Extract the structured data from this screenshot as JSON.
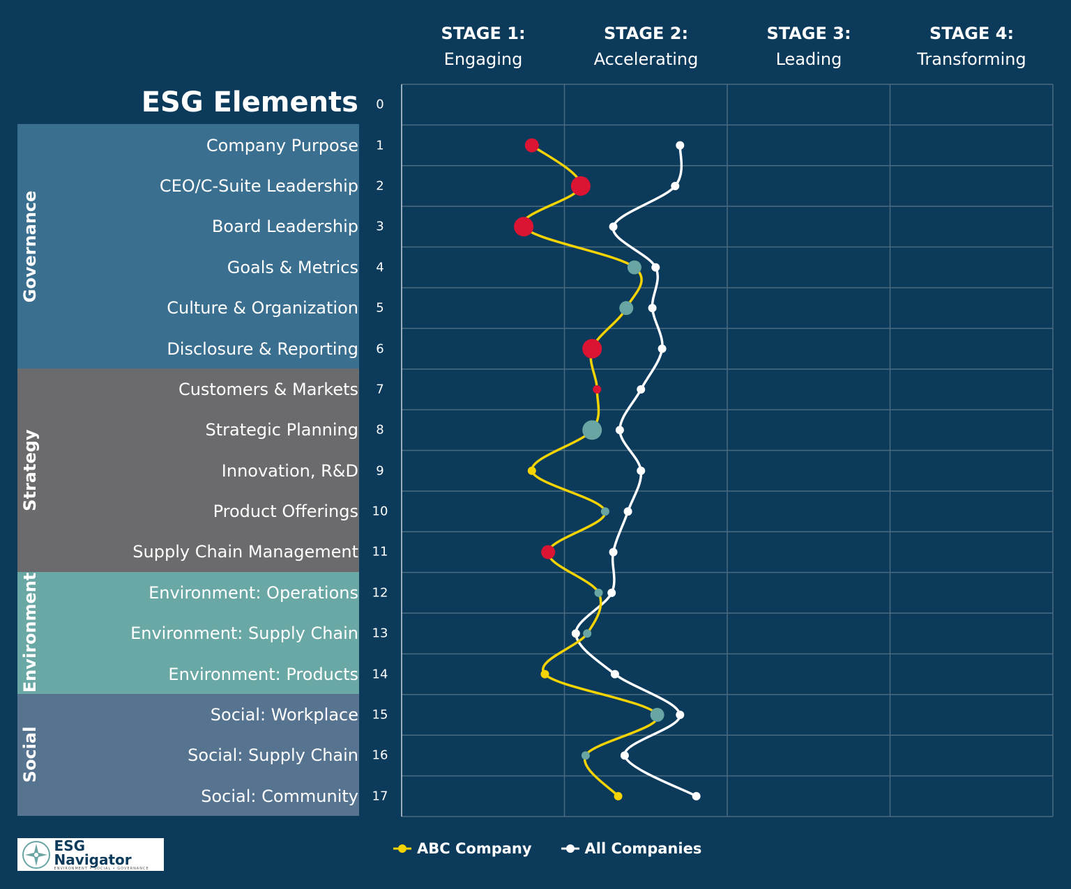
{
  "chart_data": {
    "type": "line",
    "title": "ESG Elements",
    "orientation": "vertical-categories",
    "stages": [
      {
        "title": "STAGE 1:",
        "name": "Engaging"
      },
      {
        "title": "STAGE 2:",
        "name": "Accelerating"
      },
      {
        "title": "STAGE 3:",
        "name": "Leading"
      },
      {
        "title": "STAGE 4:",
        "name": "Transforming"
      }
    ],
    "xlim": [
      0,
      4
    ],
    "grid": true,
    "row_numbers": [
      "0",
      "1",
      "2",
      "3",
      "4",
      "5",
      "6",
      "7",
      "8",
      "9",
      "10",
      "11",
      "12",
      "13",
      "14",
      "15",
      "16",
      "17"
    ],
    "groups": [
      {
        "name": "Governance",
        "color": "#3a6f8f",
        "rows": [
          1,
          6
        ]
      },
      {
        "name": "Strategy",
        "color": "#6b6b6e",
        "rows": [
          7,
          11
        ]
      },
      {
        "name": "Environment",
        "color": "#6aa8a6",
        "rows": [
          12,
          14
        ]
      },
      {
        "name": "Social",
        "color": "#567390",
        "rows": [
          15,
          17
        ]
      }
    ],
    "categories": [
      "Company Purpose",
      "CEO/C-Suite Leadership",
      "Board Leadership",
      "Goals & Metrics",
      "Culture & Organization",
      "Disclosure & Reporting",
      "Customers & Markets",
      "Strategic Planning",
      "Innovation, R&D",
      "Product Offerings",
      "Supply Chain Management",
      "Environment: Operations",
      "Environment: Supply Chain",
      "Environment: Products",
      "Social: Workplace",
      "Social: Supply Chain",
      "Social: Community"
    ],
    "series": [
      {
        "name": "ABC Company",
        "color": "#f5d300",
        "values": [
          0.8,
          1.1,
          0.75,
          1.43,
          1.38,
          1.17,
          1.2,
          1.17,
          0.8,
          1.25,
          0.9,
          1.21,
          1.14,
          0.88,
          1.57,
          1.13,
          1.33
        ],
        "markers": [
          "red-medium",
          "red-large",
          "red-large",
          "teal-medium",
          "teal-medium",
          "red-large",
          "red-small",
          "teal-large",
          "yellow-small",
          "teal-small",
          "red-medium",
          "teal-small",
          "teal-small",
          "yellow-small",
          "teal-medium",
          "teal-small",
          "yellow-small"
        ]
      },
      {
        "name": "All Companies",
        "color": "#ffffff",
        "values": [
          1.71,
          1.68,
          1.3,
          1.56,
          1.54,
          1.6,
          1.47,
          1.34,
          1.47,
          1.39,
          1.3,
          1.29,
          1.07,
          1.31,
          1.71,
          1.37,
          1.81
        ]
      }
    ],
    "marker_colors": {
      "red": "#dc1434",
      "teal": "#69a5a3",
      "yellow": "#f5d300"
    },
    "legend_position": "bottom"
  },
  "logo": {
    "text": "ESG Navigator",
    "tagline": "ENVIRONMENT • SOCIAL • GOVERNANCE"
  },
  "colors": {
    "background": "#0b3a5b",
    "grid": "#4b6b80"
  }
}
